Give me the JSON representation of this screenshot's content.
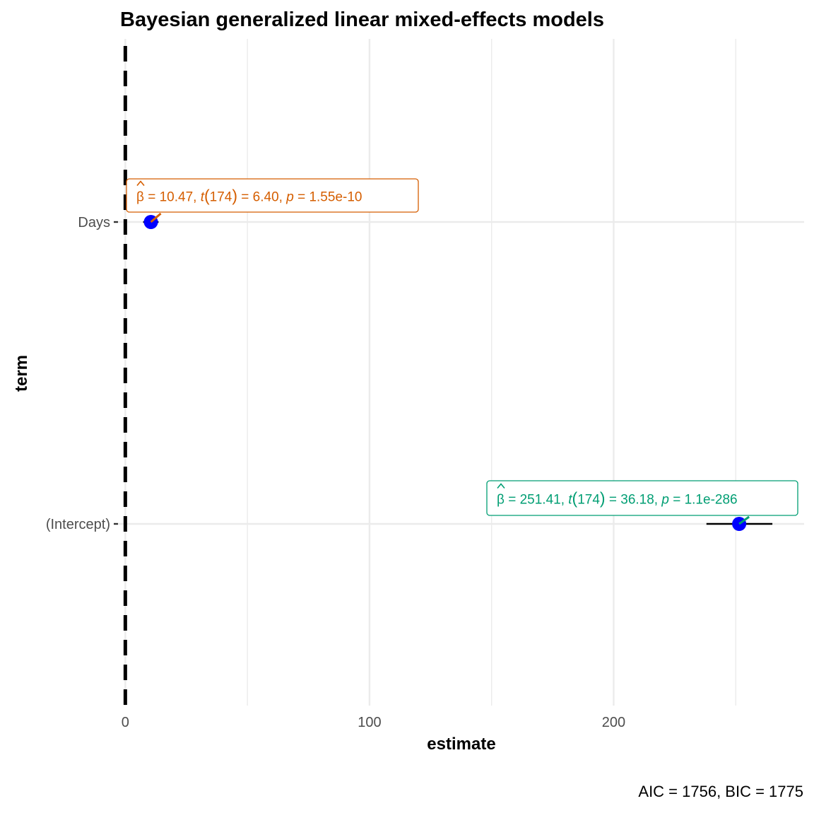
{
  "chart_data": {
    "type": "scatter",
    "title": "Bayesian generalized linear mixed-effects models",
    "xlabel": "estimate",
    "ylabel": "term",
    "caption": "AIC = 1756, BIC = 1775",
    "xlim": [
      -3,
      278
    ],
    "x_ticks": [
      0,
      100,
      200
    ],
    "x_tick_labels": [
      "0",
      "100",
      "200"
    ],
    "x_minor_ticks": [
      50,
      150,
      250
    ],
    "categories": [
      "Days",
      "(Intercept)"
    ],
    "reference_line_x": 0,
    "grid": true,
    "points": [
      {
        "term": "Days",
        "estimate": 10.47,
        "conf_low": 7.3,
        "conf_high": 13.6,
        "color": "#0000ff",
        "label": {
          "beta": "10.47",
          "df": "174",
          "t": "6.40",
          "p": "1.55e-10",
          "color": "#d55e00"
        }
      },
      {
        "term": "(Intercept)",
        "estimate": 251.41,
        "conf_low": 238,
        "conf_high": 265,
        "color": "#0000ff",
        "label": {
          "beta": "251.41",
          "df": "174",
          "t": "36.18",
          "p": "1.1e-286",
          "color": "#009e73"
        }
      }
    ]
  }
}
